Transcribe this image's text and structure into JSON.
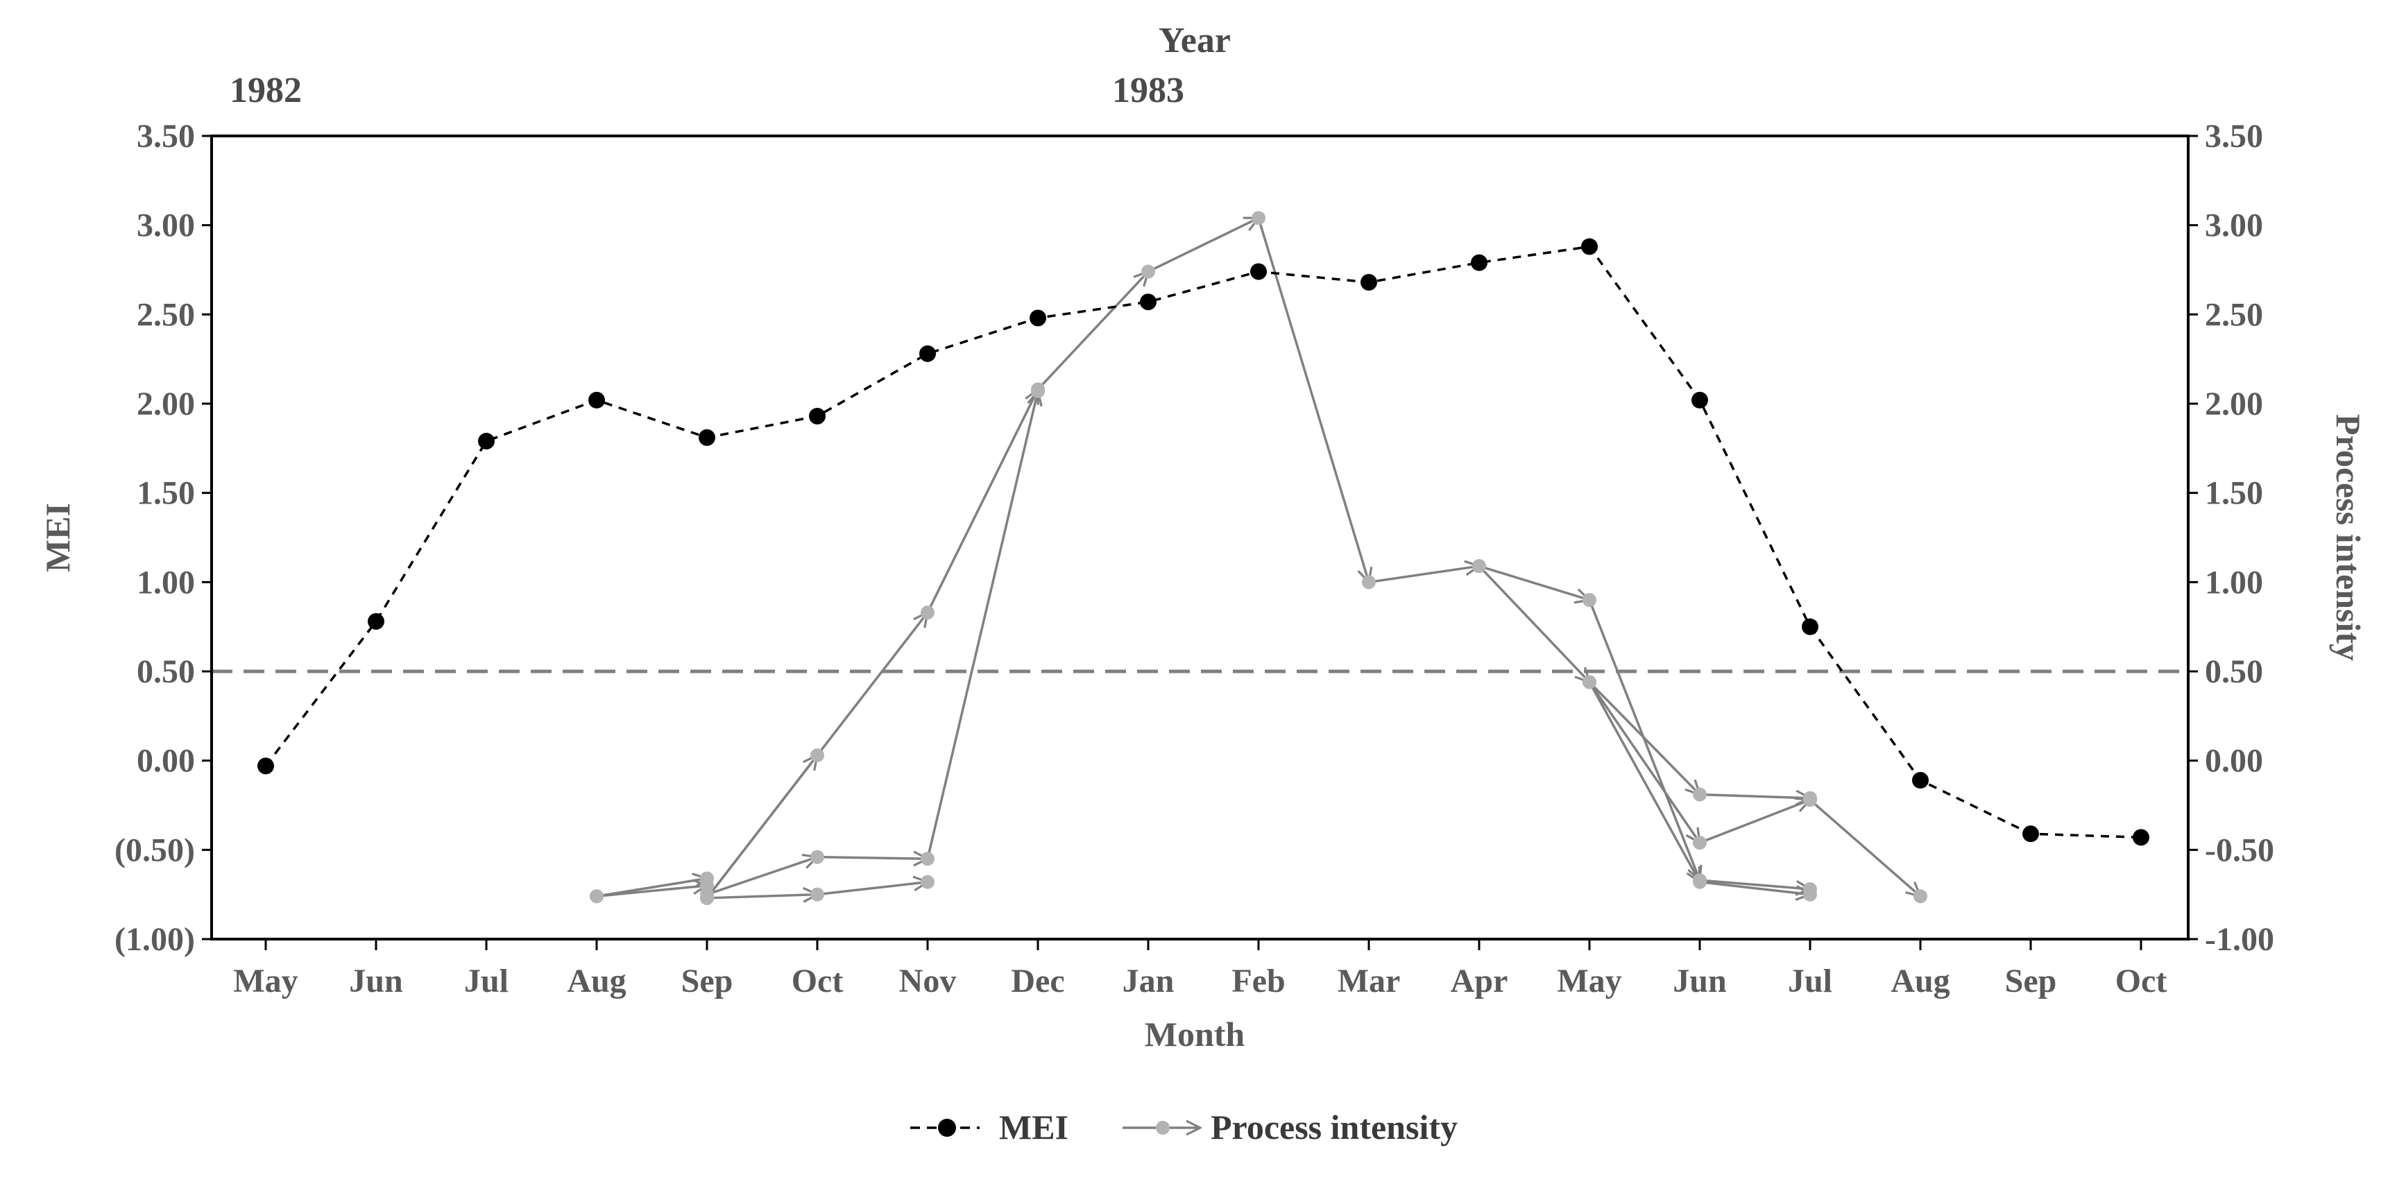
{
  "chart_data": {
    "type": "line",
    "title": "",
    "top_axis_title": "Year",
    "year_labels": [
      {
        "label": "1982",
        "month_index": 0
      },
      {
        "label": "1983",
        "month_index": 8
      }
    ],
    "xlabel": "Month",
    "categories": [
      "May",
      "Jun",
      "Jul",
      "Aug",
      "Sep",
      "Oct",
      "Nov",
      "Dec",
      "Jan",
      "Feb",
      "Mar",
      "Apr",
      "May",
      "Jun",
      "Jul",
      "Aug",
      "Sep",
      "Oct"
    ],
    "ylabel_left": "MEI",
    "ylabel_right": "Process intensity",
    "ylim": [
      -1.0,
      3.5
    ],
    "yticks_left": [
      "(1.00)",
      "(0.50)",
      "0.00",
      "0.50",
      "1.00",
      "1.50",
      "2.00",
      "2.50",
      "3.00",
      "3.50"
    ],
    "yticks_right": [
      "-1.00",
      "-0.50",
      "0.00",
      "0.50",
      "1.00",
      "1.50",
      "2.00",
      "2.50",
      "3.00",
      "3.50"
    ],
    "ytick_values": [
      -1.0,
      -0.5,
      0.0,
      0.5,
      1.0,
      1.5,
      2.0,
      2.5,
      3.0,
      3.5
    ],
    "threshold": 0.5,
    "series": [
      {
        "name": "MEI",
        "style": "dashed-black-dots",
        "color": "#000000",
        "values": [
          -0.03,
          0.78,
          1.79,
          2.02,
          1.81,
          1.93,
          2.28,
          2.48,
          2.57,
          2.74,
          2.68,
          2.79,
          2.88,
          2.02,
          0.75,
          -0.11,
          -0.41,
          -0.43
        ]
      },
      {
        "name": "Process intensity",
        "style": "grey-arrows",
        "color": "#808080",
        "paths": [
          {
            "x": [
              3,
              4
            ],
            "y": [
              -0.76,
              -0.66
            ]
          },
          {
            "x": [
              3,
              4
            ],
            "y": [
              -0.76,
              -0.7
            ]
          },
          {
            "x": [
              4,
              5
            ],
            "y": [
              -0.77,
              0.03
            ]
          },
          {
            "x": [
              4,
              5,
              6,
              7
            ],
            "y": [
              -0.75,
              -0.54,
              -0.55,
              2.07
            ]
          },
          {
            "x": [
              4,
              5,
              6
            ],
            "y": [
              -0.77,
              -0.75,
              -0.68
            ]
          },
          {
            "x": [
              4,
              6,
              7
            ],
            "y": [
              -0.77,
              0.83,
              2.08
            ]
          },
          {
            "x": [
              7,
              8,
              9,
              10,
              11
            ],
            "y": [
              2.08,
              2.74,
              3.04,
              1.0,
              1.09
            ]
          },
          {
            "x": [
              11,
              12
            ],
            "y": [
              1.09,
              0.9
            ]
          },
          {
            "x": [
              11,
              12,
              13,
              14
            ],
            "y": [
              1.09,
              0.44,
              -0.19,
              -0.21
            ]
          },
          {
            "x": [
              12,
              13,
              14
            ],
            "y": [
              0.9,
              -0.67,
              -0.72
            ]
          },
          {
            "x": [
              12,
              13,
              14
            ],
            "y": [
              0.44,
              -0.68,
              -0.75
            ]
          },
          {
            "x": [
              12,
              13,
              14,
              15
            ],
            "y": [
              0.44,
              -0.46,
              -0.22,
              -0.76
            ]
          }
        ]
      }
    ],
    "legend": [
      "MEI",
      "Process intensity"
    ]
  }
}
